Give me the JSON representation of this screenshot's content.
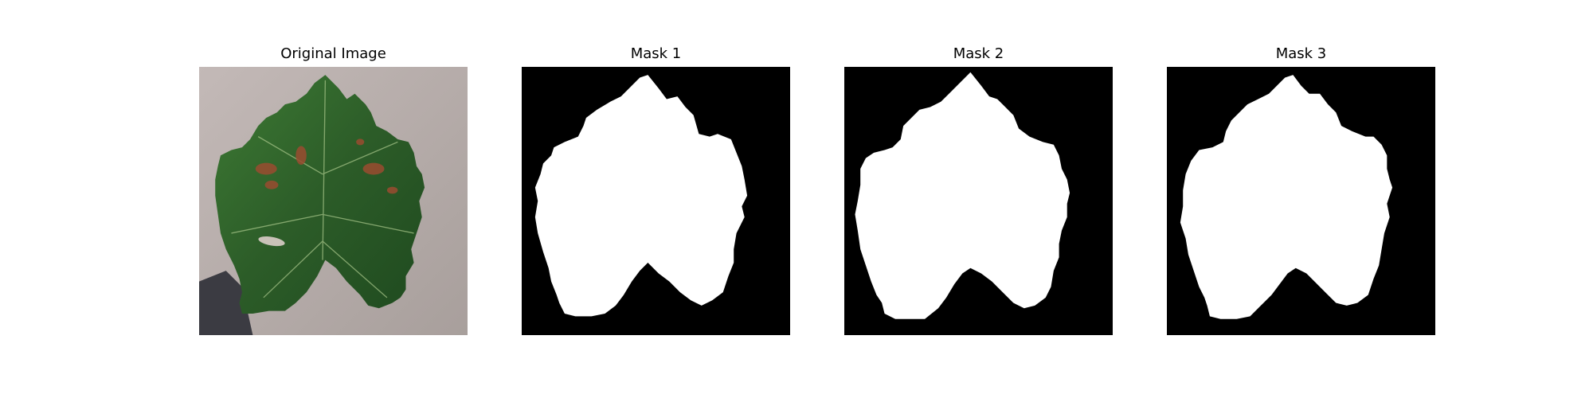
{
  "figure": {
    "background": "#ffffff",
    "panels": [
      {
        "title": "Original Image",
        "kind": "photo"
      },
      {
        "title": "Mask 1",
        "kind": "mask"
      },
      {
        "title": "Mask 2",
        "kind": "mask"
      },
      {
        "title": "Mask 3",
        "kind": "mask"
      }
    ]
  },
  "colors": {
    "mask_foreground": "#ffffff",
    "mask_background": "#000000",
    "leaf_green": "#2f5f2a",
    "lesion_brown": "#8b4a2e",
    "surface_gray": "#b9aeac",
    "shadow": "#3a3a3f"
  }
}
